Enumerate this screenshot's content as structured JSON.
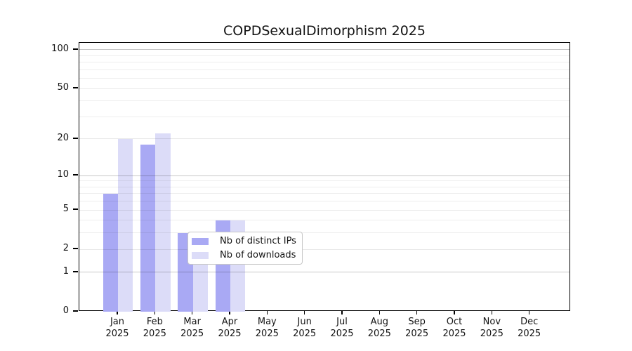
{
  "chart_data": {
    "type": "bar",
    "title": "COPDSexualDimorphism 2025",
    "categories": [
      "Jan",
      "Feb",
      "Mar",
      "Apr",
      "May",
      "Jun",
      "Jul",
      "Aug",
      "Sep",
      "Oct",
      "Nov",
      "Dec"
    ],
    "category_year": "2025",
    "series": [
      {
        "name": "Nb of distinct IPs",
        "color": "#a9a9f4",
        "values": [
          7,
          18,
          3,
          4,
          0,
          0,
          0,
          0,
          0,
          0,
          0,
          0
        ]
      },
      {
        "name": "Nb of downloads",
        "color": "#dcdcf8",
        "values": [
          20,
          22,
          3,
          4,
          0,
          0,
          0,
          0,
          0,
          0,
          0,
          0
        ]
      }
    ],
    "yscale": "log1p",
    "ylim": [
      0,
      113
    ],
    "yticks": [
      0,
      1,
      2,
      5,
      10,
      20,
      50,
      100
    ],
    "minor_yticks": [
      3,
      4,
      6,
      7,
      8,
      9,
      30,
      40,
      60,
      70,
      80,
      90
    ],
    "major_grid_at": [
      1,
      10,
      100
    ],
    "xlabel": "",
    "ylabel": "",
    "grid": "horizontal",
    "legend_position": "lower center",
    "colors": {
      "background": "#ffffff",
      "axis": "#000000",
      "grid_minor": "#efefef",
      "grid_major": "#c9c9c9"
    }
  }
}
